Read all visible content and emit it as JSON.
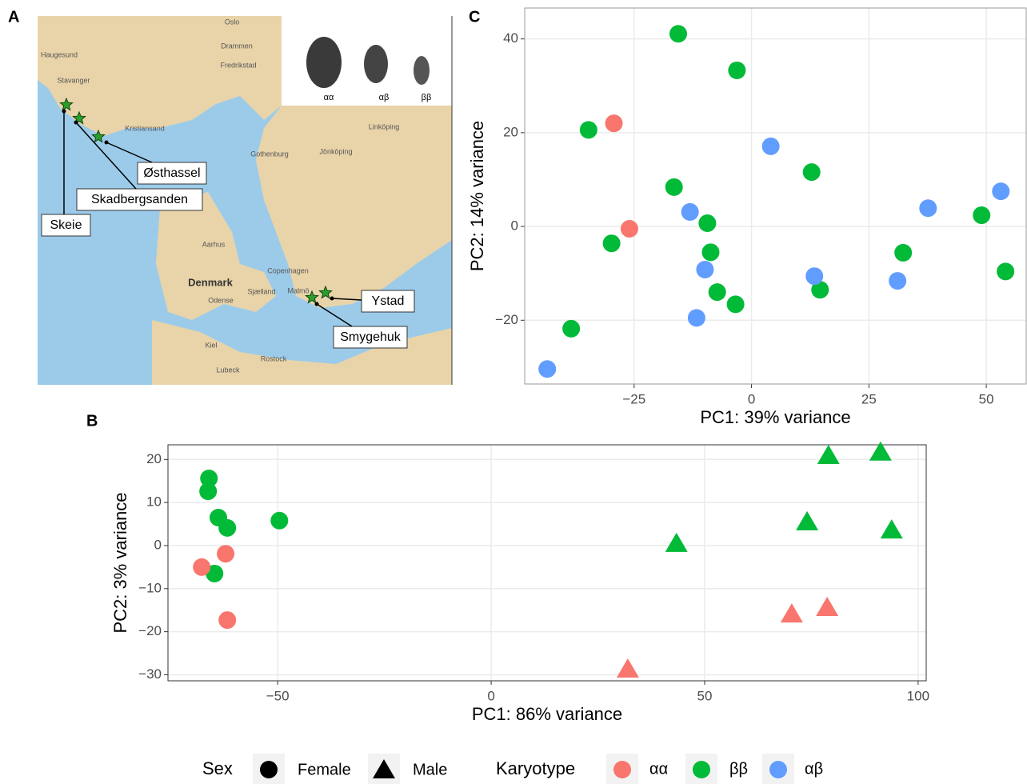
{
  "panels": [
    "A",
    "B",
    "C"
  ],
  "map": {
    "places": [
      "Oslo",
      "Drammen",
      "Fredrikstad",
      "Haugesund",
      "Stavanger",
      "Kristiansand",
      "Gothenburg",
      "Jönköping",
      "Linköping",
      "Aarhus",
      "Denmark",
      "Odense",
      "Sjælland",
      "Copenhagen",
      "Malmö",
      "Kiel",
      "Rostock",
      "Lubeck"
    ],
    "sites": [
      "Østhassel",
      "Skadbergsanden",
      "Skeie",
      "Ystad",
      "Smygehuk"
    ],
    "fly_labels": [
      "αα",
      "αβ",
      "ββ"
    ]
  },
  "legend": {
    "sex_title": "Sex",
    "sex": [
      "Female",
      "Male"
    ],
    "karyotype_title": "Karyotype",
    "karyotype": [
      {
        "name": "αα",
        "color": "#F8766D"
      },
      {
        "name": "ββ",
        "color": "#00BA38"
      },
      {
        "name": "αβ",
        "color": "#619CFF"
      }
    ]
  },
  "chart_data": [
    {
      "type": "scatter",
      "xlabel": "PC1: 39% variance",
      "ylabel": "PC2: 14% variance",
      "xlim": [
        -48.3,
        58.5
      ],
      "ylim": [
        -33.6,
        46.6
      ],
      "xticks": [
        {
          "value": -25,
          "label": "−25"
        },
        0,
        25,
        50
      ],
      "yticks": [
        40,
        20,
        0,
        {
          "value": -20,
          "label": "−20"
        }
      ],
      "grid": true,
      "series": [
        {
          "name": "ββ",
          "color": "#00BA38",
          "marker": "circle",
          "x": [
            -15.6,
            -3.1,
            -34.7,
            12.8,
            -16.5,
            -9.4,
            -29.8,
            -8.7,
            -7.3,
            -3.4,
            -38.4,
            14.6,
            32.3,
            49.0,
            54.1
          ],
          "values": [
            41.1,
            33.3,
            20.6,
            11.6,
            8.4,
            0.7,
            -3.6,
            -5.5,
            -14.0,
            -16.6,
            -21.8,
            -13.5,
            -5.6,
            2.4,
            -9.6
          ]
        },
        {
          "name": "αα",
          "color": "#F8766D",
          "marker": "circle",
          "x": [
            -29.3,
            -26.0
          ],
          "values": [
            22.0,
            -0.5
          ]
        },
        {
          "name": "αβ",
          "color": "#619CFF",
          "marker": "circle",
          "x": [
            4.1,
            -13.1,
            -9.9,
            -11.7,
            -43.5,
            13.4,
            31.1,
            37.6,
            53.1
          ],
          "values": [
            17.1,
            3.1,
            -9.2,
            -19.5,
            -30.4,
            -10.6,
            -11.6,
            3.9,
            7.5
          ]
        }
      ]
    },
    {
      "type": "scatter",
      "xlabel": "PC1: 86% variance",
      "ylabel": "PC2: 3% variance",
      "xlim": [
        -75.7,
        101.9
      ],
      "ylim": [
        -31.4,
        23.4
      ],
      "xticks": [
        {
          "value": -50,
          "label": "−50"
        },
        0,
        50,
        100
      ],
      "yticks": [
        20,
        10,
        0,
        {
          "value": -10,
          "label": "−10"
        },
        {
          "value": -20,
          "label": "−20"
        },
        {
          "value": -30,
          "label": "−30"
        }
      ],
      "grid": true,
      "series": [
        {
          "name": "ββ",
          "color": "#00BA38",
          "marker": "circle",
          "x": [
            -66.1,
            -66.3,
            -63.9,
            -61.8,
            -49.6,
            -64.8
          ],
          "values": [
            15.6,
            12.6,
            6.5,
            4.1,
            5.8,
            -6.5
          ]
        },
        {
          "name": "αα",
          "color": "#F8766D",
          "marker": "circle",
          "x": [
            -67.8,
            -62.2,
            -61.8
          ],
          "values": [
            -5.0,
            -1.9,
            -17.3
          ]
        },
        {
          "name": "ββ",
          "color": "#00BA38",
          "marker": "triangle",
          "x": [
            79.0,
            91.2,
            74.0,
            93.8,
            43.4
          ],
          "values": [
            20.8,
            21.6,
            5.4,
            3.5,
            0.4
          ]
        },
        {
          "name": "αα",
          "color": "#F8766D",
          "marker": "triangle",
          "x": [
            70.4,
            78.7,
            32.0
          ],
          "values": [
            -16.0,
            -14.5,
            -28.8
          ]
        }
      ]
    }
  ]
}
